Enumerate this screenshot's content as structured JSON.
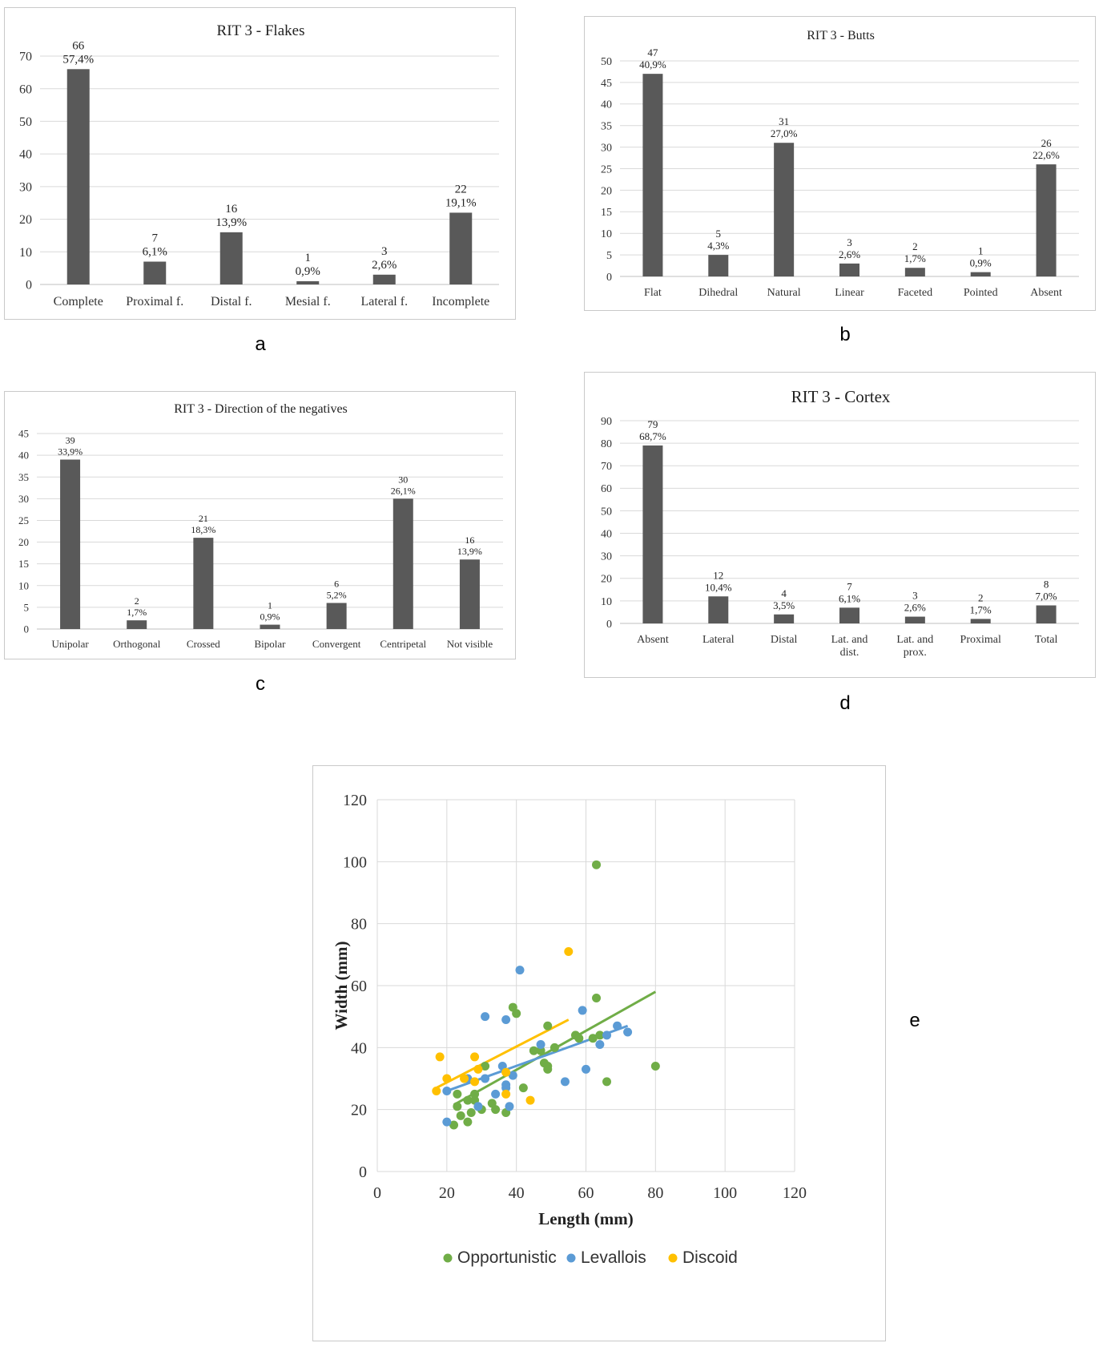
{
  "panel_labels": {
    "a": "a",
    "b": "b",
    "c": "c",
    "d": "d",
    "e": "e"
  },
  "chart_data": [
    {
      "id": "a",
      "type": "bar",
      "title": "RIT 3 - Flakes",
      "categories": [
        "Complete",
        "Proximal f.",
        "Distal f.",
        "Mesial f.",
        "Lateral f.",
        "Incomplete"
      ],
      "values": [
        66,
        7,
        16,
        1,
        3,
        22
      ],
      "data_labels_pct": [
        "57,4%",
        "6,1%",
        "13,9%",
        "0,9%",
        "2,6%",
        "19,1%"
      ],
      "ylim": [
        0,
        70
      ],
      "yticks": [
        0,
        10,
        20,
        30,
        40,
        50,
        60,
        70
      ],
      "grid": true,
      "bar_color": "#595959"
    },
    {
      "id": "b",
      "type": "bar",
      "title": "RIT 3 - Butts",
      "categories": [
        "Flat",
        "Dihedral",
        "Natural",
        "Linear",
        "Faceted",
        "Pointed",
        "Absent"
      ],
      "values": [
        47,
        5,
        31,
        3,
        2,
        1,
        26
      ],
      "data_labels_pct": [
        "40,9%",
        "4,3%",
        "27,0%",
        "2,6%",
        "1,7%",
        "0,9%",
        "22,6%"
      ],
      "ylim": [
        0,
        50
      ],
      "yticks": [
        0,
        5,
        10,
        15,
        20,
        25,
        30,
        35,
        40,
        45,
        50
      ],
      "grid": true,
      "bar_color": "#595959"
    },
    {
      "id": "c",
      "type": "bar",
      "title": "RIT 3 - Direction of the negatives",
      "categories": [
        "Unipolar",
        "Orthogonal",
        "Crossed",
        "Bipolar",
        "Convergent",
        "Centripetal",
        "Not visible"
      ],
      "values": [
        39,
        2,
        21,
        1,
        6,
        30,
        16
      ],
      "data_labels_pct": [
        "33,9%",
        "1,7%",
        "18,3%",
        "0,9%",
        "5,2%",
        "26,1%",
        "13,9%"
      ],
      "ylim": [
        0,
        45
      ],
      "yticks": [
        0,
        5,
        10,
        15,
        20,
        25,
        30,
        35,
        40,
        45
      ],
      "grid": true,
      "bar_color": "#595959"
    },
    {
      "id": "d",
      "type": "bar",
      "title": "RIT 3 - Cortex",
      "categories": [
        [
          "Absent"
        ],
        [
          "Lateral"
        ],
        [
          "Distal"
        ],
        [
          "Lat. and",
          "dist."
        ],
        [
          "Lat. and",
          "prox."
        ],
        [
          "Proximal"
        ],
        [
          "Total"
        ]
      ],
      "values": [
        79,
        12,
        4,
        7,
        3,
        2,
        8
      ],
      "data_labels_pct": [
        "68,7%",
        "10,4%",
        "3,5%",
        "6,1%",
        "2,6%",
        "1,7%",
        "7,0%"
      ],
      "ylim": [
        0,
        90
      ],
      "yticks": [
        0,
        10,
        20,
        30,
        40,
        50,
        60,
        70,
        80,
        90
      ],
      "grid": true,
      "bar_color": "#595959"
    },
    {
      "id": "e",
      "type": "scatter",
      "title": "",
      "xlabel": "Length (mm)",
      "ylabel": "Width (mm)",
      "xlim": [
        0,
        120
      ],
      "ylim": [
        0,
        120
      ],
      "xticks": [
        0,
        20,
        40,
        60,
        80,
        100,
        120
      ],
      "yticks": [
        0,
        20,
        40,
        60,
        80,
        100,
        120
      ],
      "grid": true,
      "legend_position": "bottom",
      "series": [
        {
          "name": "Opportunistic",
          "color": "#70AD47",
          "points": [
            [
              63,
              99
            ],
            [
              63,
              56
            ],
            [
              39,
              53
            ],
            [
              40,
              51
            ],
            [
              49,
              47
            ],
            [
              57,
              44
            ],
            [
              58,
              43
            ],
            [
              62,
              43
            ],
            [
              64,
              44
            ],
            [
              45,
              39
            ],
            [
              47,
              39
            ],
            [
              51,
              40
            ],
            [
              48,
              35
            ],
            [
              49,
              34
            ],
            [
              49,
              33
            ],
            [
              80,
              34
            ],
            [
              42,
              27
            ],
            [
              66,
              29
            ],
            [
              31,
              34
            ],
            [
              26,
              23
            ],
            [
              28,
              23
            ],
            [
              28,
              25
            ],
            [
              23,
              25
            ],
            [
              23,
              21
            ],
            [
              27,
              19
            ],
            [
              30,
              20
            ],
            [
              33,
              22
            ],
            [
              34,
              20
            ],
            [
              37,
              19
            ],
            [
              24,
              18
            ],
            [
              26,
              16
            ],
            [
              22,
              15
            ]
          ],
          "trend": [
            [
              22,
              21.5
            ],
            [
              80,
              58
            ]
          ]
        },
        {
          "name": "Levallois",
          "color": "#5B9BD5",
          "points": [
            [
              41,
              65
            ],
            [
              31,
              50
            ],
            [
              37,
              49
            ],
            [
              59,
              52
            ],
            [
              47,
              41
            ],
            [
              64,
              41
            ],
            [
              66,
              44
            ],
            [
              69,
              47
            ],
            [
              72,
              45
            ],
            [
              36,
              34
            ],
            [
              39,
              31
            ],
            [
              37,
              28
            ],
            [
              37,
              27
            ],
            [
              34,
              25
            ],
            [
              31,
              30
            ],
            [
              26,
              30
            ],
            [
              20,
              26
            ],
            [
              29,
              21
            ],
            [
              38,
              21
            ],
            [
              20,
              16
            ],
            [
              54,
              29
            ],
            [
              60,
              33
            ]
          ],
          "trend": [
            [
              20,
              26
            ],
            [
              72,
              47
            ]
          ]
        },
        {
          "name": "Discoid",
          "color": "#FFC000",
          "points": [
            [
              55,
              71
            ],
            [
              18,
              37
            ],
            [
              28,
              37
            ],
            [
              20,
              30
            ],
            [
              25,
              30
            ],
            [
              29,
              33
            ],
            [
              28,
              29
            ],
            [
              17,
              26
            ],
            [
              37,
              32
            ],
            [
              37,
              25
            ],
            [
              44,
              23
            ]
          ],
          "trend": [
            [
              17,
              27
            ],
            [
              55,
              49
            ]
          ]
        }
      ]
    }
  ]
}
